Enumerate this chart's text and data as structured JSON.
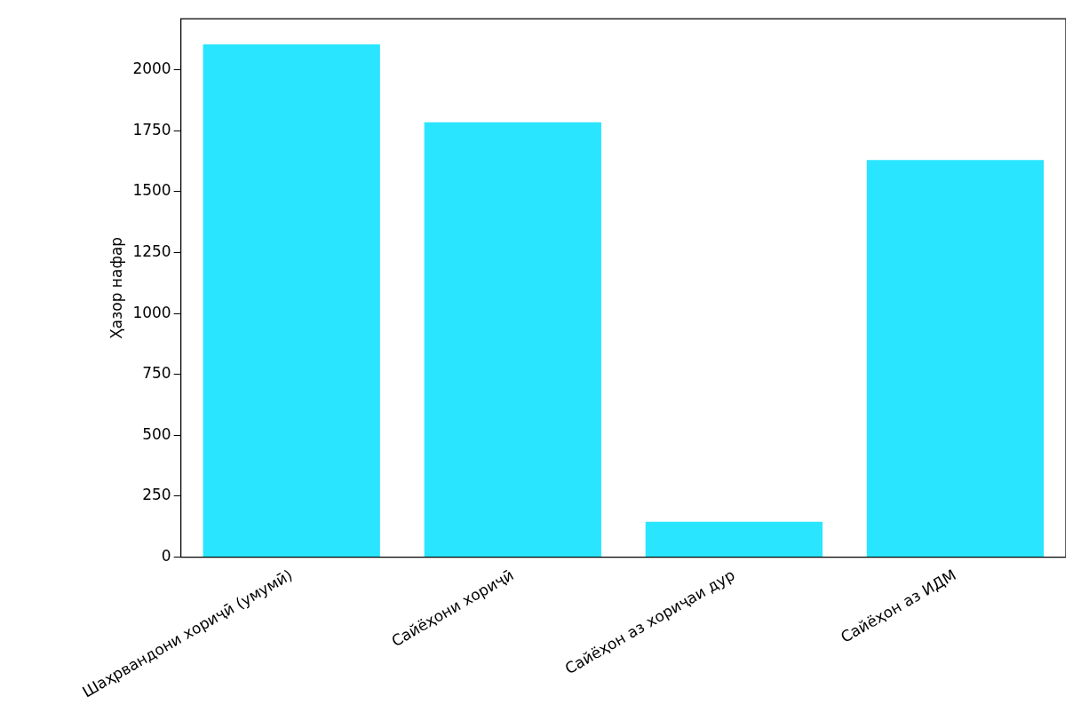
{
  "chart_data": {
    "type": "bar",
    "ylabel": "Ҳазор нафар",
    "categories": [
      "Шаҳрвандони хориҷӣ (умумӣ)",
      "Сайёҳони хориҷӣ",
      "Сайёҳон аз хориҷаи дур",
      "Сайёҳон аз ИДМ"
    ],
    "values": [
      2105,
      1785,
      145,
      1630
    ],
    "color": "#29e5ff",
    "ylim": [
      0,
      2210
    ],
    "yticks": [
      0,
      250,
      500,
      750,
      1000,
      1250,
      1500,
      1750,
      2000
    ],
    "grid": false
  }
}
